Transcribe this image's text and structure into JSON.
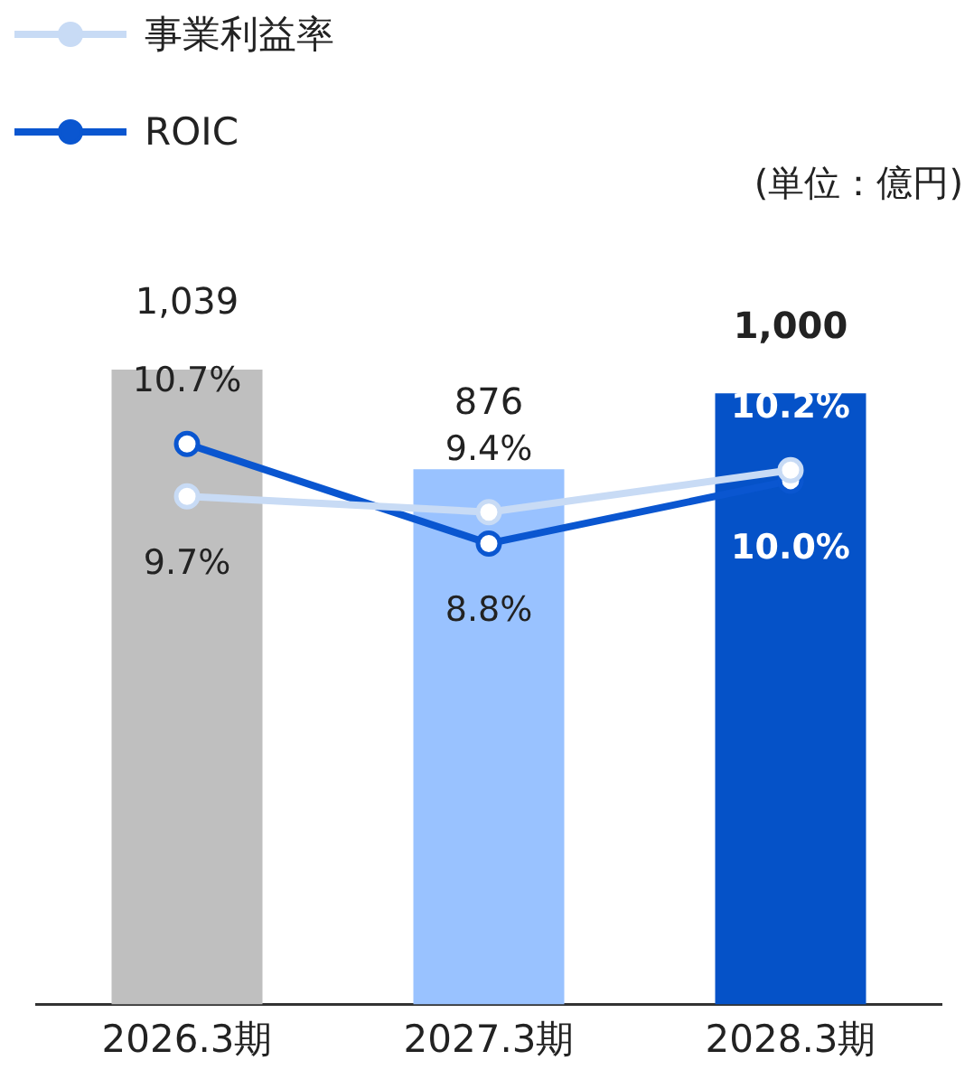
{
  "chart_data": {
    "type": "bar",
    "categories": [
      "2026.3期",
      "2027.3期",
      "2028.3期"
    ],
    "series": [
      {
        "colors": [
          "#bfbfbf",
          "#99c2ff",
          "#0552c8"
        ],
        "values": [
          1039,
          876,
          1000
        ],
        "value_labels": [
          "1,039",
          "876",
          "1,000"
        ]
      },
      {
        "type": "line",
        "name": "事業利益率",
        "color": "#c8dbf5",
        "axis": "y2",
        "values": [
          9.7,
          9.4,
          10.2
        ],
        "value_labels": [
          "9.7%",
          "9.4%",
          "10.2%"
        ]
      },
      {
        "type": "line",
        "name": "ROIC",
        "color": "#0a56d0",
        "axis": "y2",
        "values": [
          10.7,
          8.8,
          10.0
        ],
        "value_labels": [
          "10.7%",
          "8.8%",
          "10.0%"
        ]
      }
    ],
    "tick_labels": "x",
    "legend": "top left",
    "marker": "circle",
    "line_style": "solid",
    "annotations": [
      "(単位：億円)"
    ]
  }
}
